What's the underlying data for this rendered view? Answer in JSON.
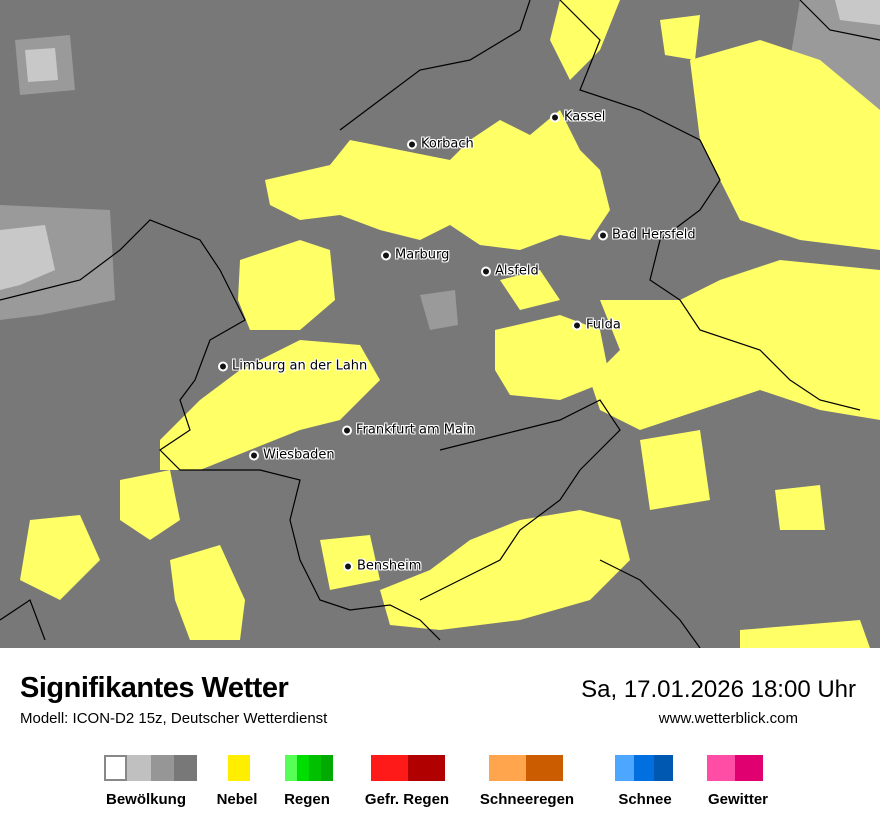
{
  "header": {
    "title": "Signifikantes Wetter",
    "model": "Modell: ICON-D2 15z, Deutscher Wetterdienst",
    "datetime": "Sa, 17.01.2026 18:00 Uhr",
    "website": "www.wetterblick.com"
  },
  "map": {
    "colors": {
      "background": "#787878",
      "fog": "#ffff66",
      "cloud_light": "#c8c8c8",
      "cloud_mid": "#9a9a9a",
      "border": "#000000"
    },
    "cities": [
      {
        "name": "Kassel"
      },
      {
        "name": "Korbach"
      },
      {
        "name": "Bad Hersfeld"
      },
      {
        "name": "Marburg"
      },
      {
        "name": "Alsfeld"
      },
      {
        "name": "Fulda"
      },
      {
        "name": "Limburg an der Lahn"
      },
      {
        "name": "Frankfurt am Main"
      },
      {
        "name": "Wiesbaden"
      },
      {
        "name": "Bensheim"
      }
    ]
  },
  "legend": [
    {
      "label": "Bewölkung",
      "colors": [
        "#ffffff",
        "#c0c0c0",
        "#969696",
        "#787878"
      ]
    },
    {
      "label": "Nebel",
      "colors": [
        "#ffee00"
      ]
    },
    {
      "label": "Regen",
      "colors": [
        "#55ff55",
        "#00dd00",
        "#00c000",
        "#00aa00"
      ]
    },
    {
      "label": "Gefr. Regen",
      "colors": [
        "#ff1a1a",
        "#b00000"
      ]
    },
    {
      "label": "Schneeregen",
      "colors": [
        "#ffa54d",
        "#cc5c00"
      ]
    },
    {
      "label": "Schnee",
      "colors": [
        "#4da6ff",
        "#0070e0",
        "#0058b0"
      ]
    },
    {
      "label": "Gewitter",
      "colors": [
        "#ff4da6",
        "#e00070"
      ]
    }
  ]
}
